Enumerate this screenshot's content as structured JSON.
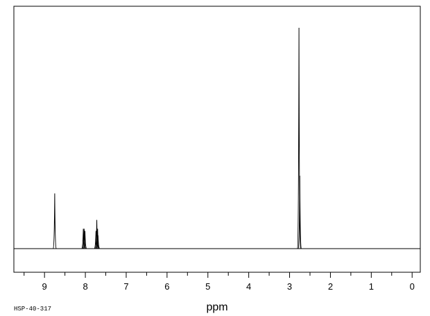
{
  "chart_data": {
    "type": "line",
    "title": "",
    "xlabel": "ppm",
    "ylabel": "",
    "xlim": [
      9.75,
      -0.2
    ],
    "x_reversed": true,
    "ylim": [
      -0.13,
      1.1
    ],
    "grid": false,
    "legend": "none",
    "x_ticks": [
      9,
      8,
      7,
      6,
      5,
      4,
      3,
      2,
      1,
      0
    ],
    "x_tick_labels": [
      "9",
      "8",
      "7",
      "6",
      "5",
      "4",
      "3",
      "2",
      "1",
      "0"
    ],
    "series": [
      {
        "peaks": [
          {
            "ppm": 8.75,
            "intensity": 0.25
          },
          {
            "ppm": 8.05,
            "intensity": 0.09
          },
          {
            "ppm": 8.03,
            "intensity": 0.09
          },
          {
            "ppm": 8.01,
            "intensity": 0.08
          },
          {
            "ppm": 7.74,
            "intensity": 0.08
          },
          {
            "ppm": 7.72,
            "intensity": 0.13
          },
          {
            "ppm": 7.7,
            "intensity": 0.09
          },
          {
            "ppm": 7.69,
            "intensity": 0.06
          },
          {
            "ppm": 2.77,
            "intensity": 1.0
          },
          {
            "ppm": 2.75,
            "intensity": 0.33
          }
        ]
      }
    ],
    "sample_id": "HSP-40-317",
    "colors": {
      "trace": "#000000",
      "frame": "#000000",
      "background": "#ffffff"
    }
  }
}
